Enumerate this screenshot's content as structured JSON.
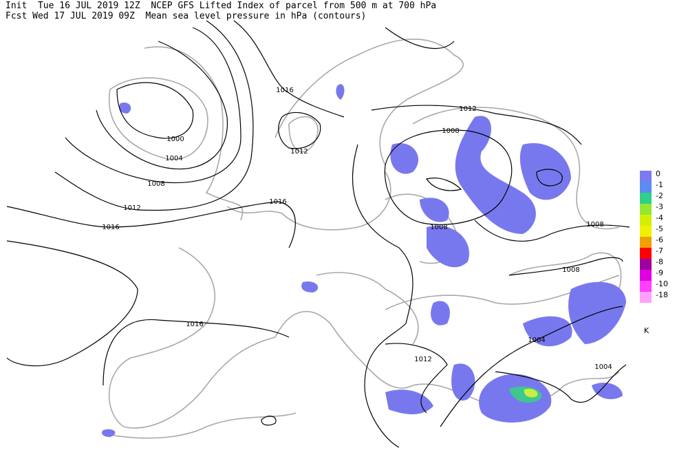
{
  "header": {
    "line1": "Init  Tue 16 JUL 2019 12Z  NCEP GFS Lifted Index of parcel from 500 m at 700 hPa",
    "line2": "Fcst Wed 17 JUL 2019 09Z  Mean sea level pressure in hPa (contours)"
  },
  "contour_labels": [
    1016,
    1012,
    1008,
    1000,
    1004,
    1012,
    1008,
    1016,
    1012,
    1016,
    1008,
    1008,
    1008,
    1016,
    1004,
    1012,
    1004
  ],
  "legend": {
    "unit": "K",
    "entries": [
      {
        "value": 0,
        "color": "#7b7bef"
      },
      {
        "value": -1,
        "color": "#5b8cf0"
      },
      {
        "value": -2,
        "color": "#2ed08a"
      },
      {
        "value": -3,
        "color": "#96e632"
      },
      {
        "value": -4,
        "color": "#d2f000"
      },
      {
        "value": -5,
        "color": "#f0f000"
      },
      {
        "value": -6,
        "color": "#f0a000"
      },
      {
        "value": -7,
        "color": "#ff0000"
      },
      {
        "value": -8,
        "color": "#a000a0"
      },
      {
        "value": -9,
        "color": "#e000e0"
      },
      {
        "value": -10,
        "color": "#ff40ff"
      },
      {
        "value": -18,
        "color": "#ffa0ff"
      }
    ]
  }
}
